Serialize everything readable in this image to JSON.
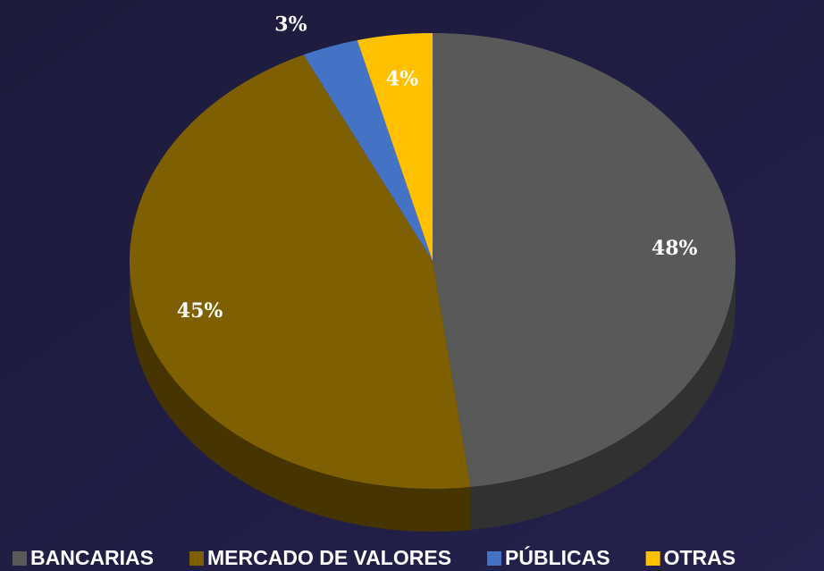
{
  "chart_data": {
    "type": "pie",
    "three_d": true,
    "categories": [
      "BANCARIAS",
      "MERCADO DE VALORES",
      "PÚBLICAS",
      "OTRAS"
    ],
    "values": [
      48,
      45,
      3,
      4
    ],
    "value_labels": [
      "48%",
      "45%",
      "3%",
      "4%"
    ],
    "colors": [
      "#595959",
      "#7f6000",
      "#4472c4",
      "#ffc000"
    ],
    "legend": "bottom"
  }
}
